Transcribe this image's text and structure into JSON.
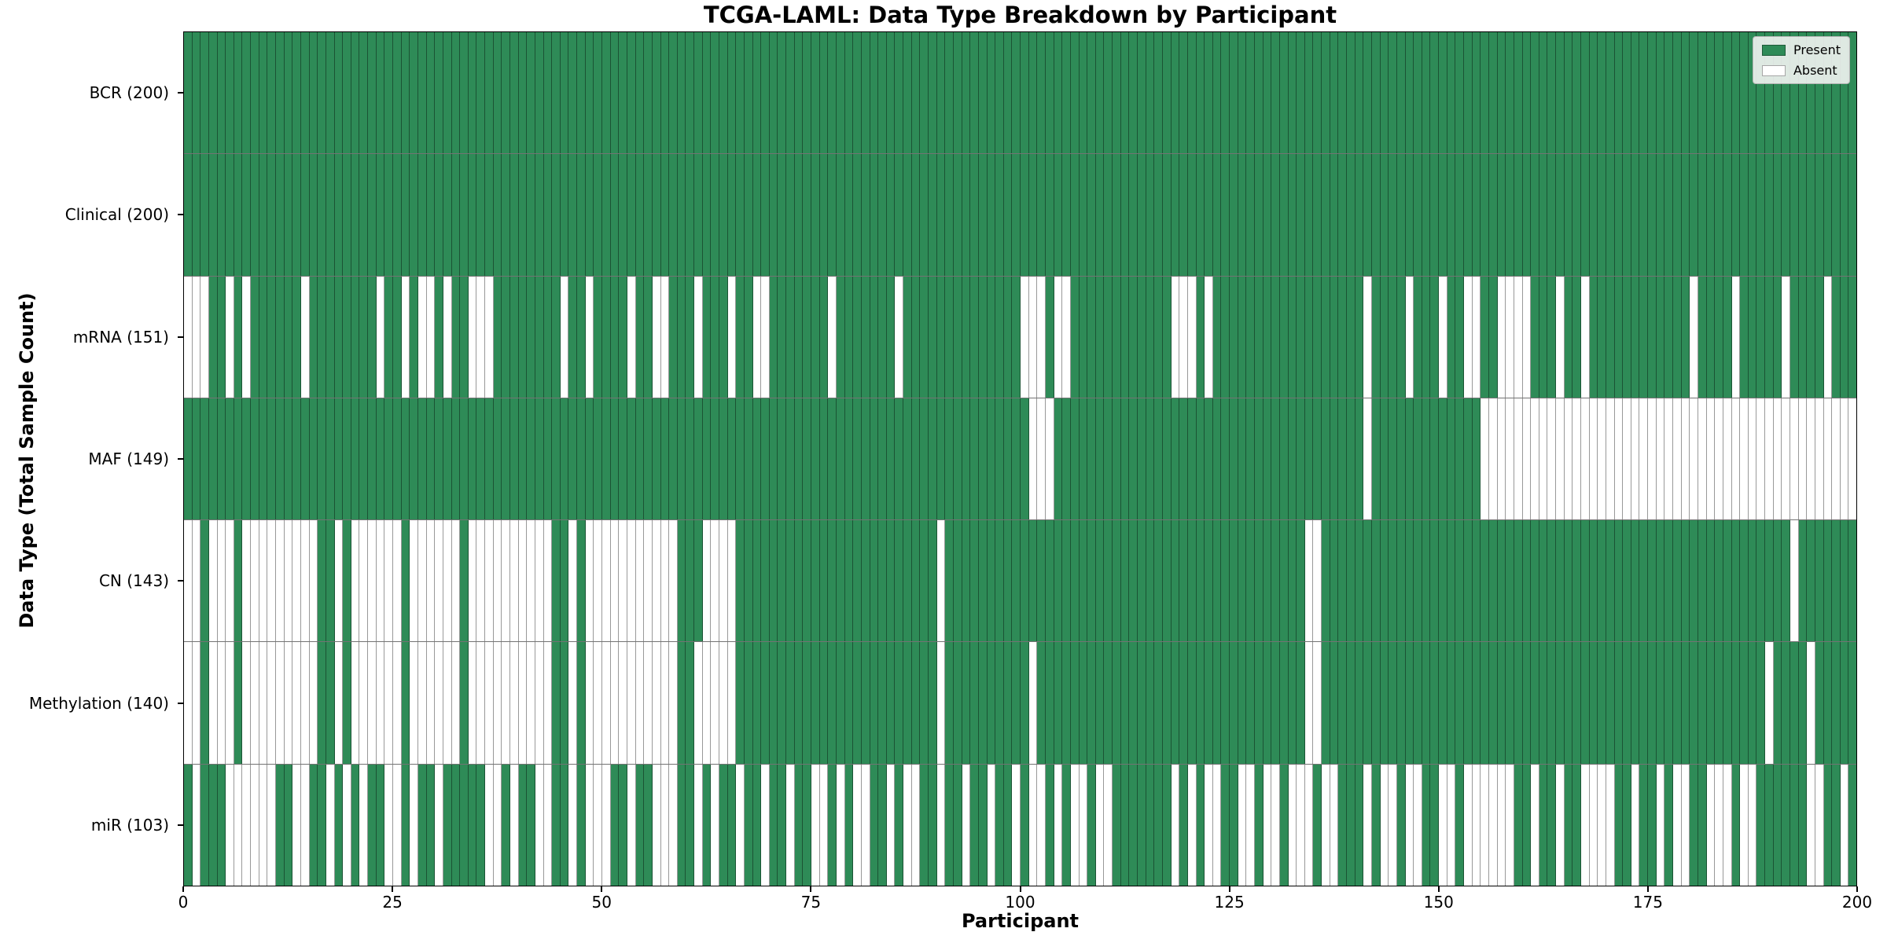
{
  "chart_data": {
    "type": "heatmap",
    "title": "TCGA-LAML: Data Type Breakdown by Participant",
    "xlabel": "Participant",
    "ylabel": "Data Type (Total Sample Count)",
    "x_range": [
      0,
      200
    ],
    "n_participants": 200,
    "x_ticks": [
      0,
      25,
      50,
      75,
      100,
      125,
      150,
      175,
      200
    ],
    "grid": false,
    "legend": {
      "position": "upper right",
      "entries": [
        {
          "label": "Present",
          "color": "#2e8b57"
        },
        {
          "label": "Absent",
          "color": "#ffffff"
        }
      ]
    },
    "colors": {
      "present": "#2e8b57",
      "absent": "#ffffff"
    },
    "rows": [
      {
        "name": "BCR",
        "label": "BCR (200)",
        "present_count": 200,
        "pattern": "11111111111111111111111111111111111111111111111111111111111111111111111111111111111111111111111111111111111111111111111111111111111111111111111111111111111111111111111111111111111111111111111111111111"
      },
      {
        "name": "Clinical",
        "label": "Clinical (200)",
        "present_count": 200,
        "pattern": "11111111111111111111111111111111111111111111111111111111111111111111111111111111111111111111111111111111111111111111111111111111111111111111111111111111111111111111111111111111111111111111111111111111"
      },
      {
        "name": "mRNA",
        "label": "mRNA (151)",
        "present_count": 151,
        "pattern": "00011010111111011111111011010010110001111111101101111011001110111011001111111011111110111111111111110001001111111111110001011111111111111111101111011101100110000111011011111111111101111011111011110111"
      },
      {
        "name": "MAF",
        "label": "MAF (149)",
        "present_count": 149,
        "pattern": "11111111111111111111111111111111111111111111111111111111111111111111111111111111111111111111111111111000111111111111111111111111111111111111101111111111111000000000000000000000000000000000000000000000"
      },
      {
        "name": "CN",
        "label": "CN (143)",
        "present_count": 143,
        "pattern": "00100010000000001101000000100000010000000000110100000000000111000011111111111111111111111101111111111111111111111111111111111111111111001111111111111111111111111111111111111111111111111111111101111111"
      },
      {
        "name": "Methylation",
        "label": "Methylation (140)",
        "present_count": 140,
        "pattern": "00100010000000001101000000100000010000000000110100000000000110000011111111111111111111111101111111111011111111111111111111111111111111001111111111111111111111111111111111111111111111111111101111011111"
      },
      {
        "name": "miR",
        "label": "miR (103)",
        "present_count": 103,
        "pattern": "10111000000110011010101100101101111100101100110100011011000110101101101101100101001101001101101101101001010010011111110101001100100100010011101001001100100000011011011000011011010011000100111111001101"
      }
    ]
  }
}
